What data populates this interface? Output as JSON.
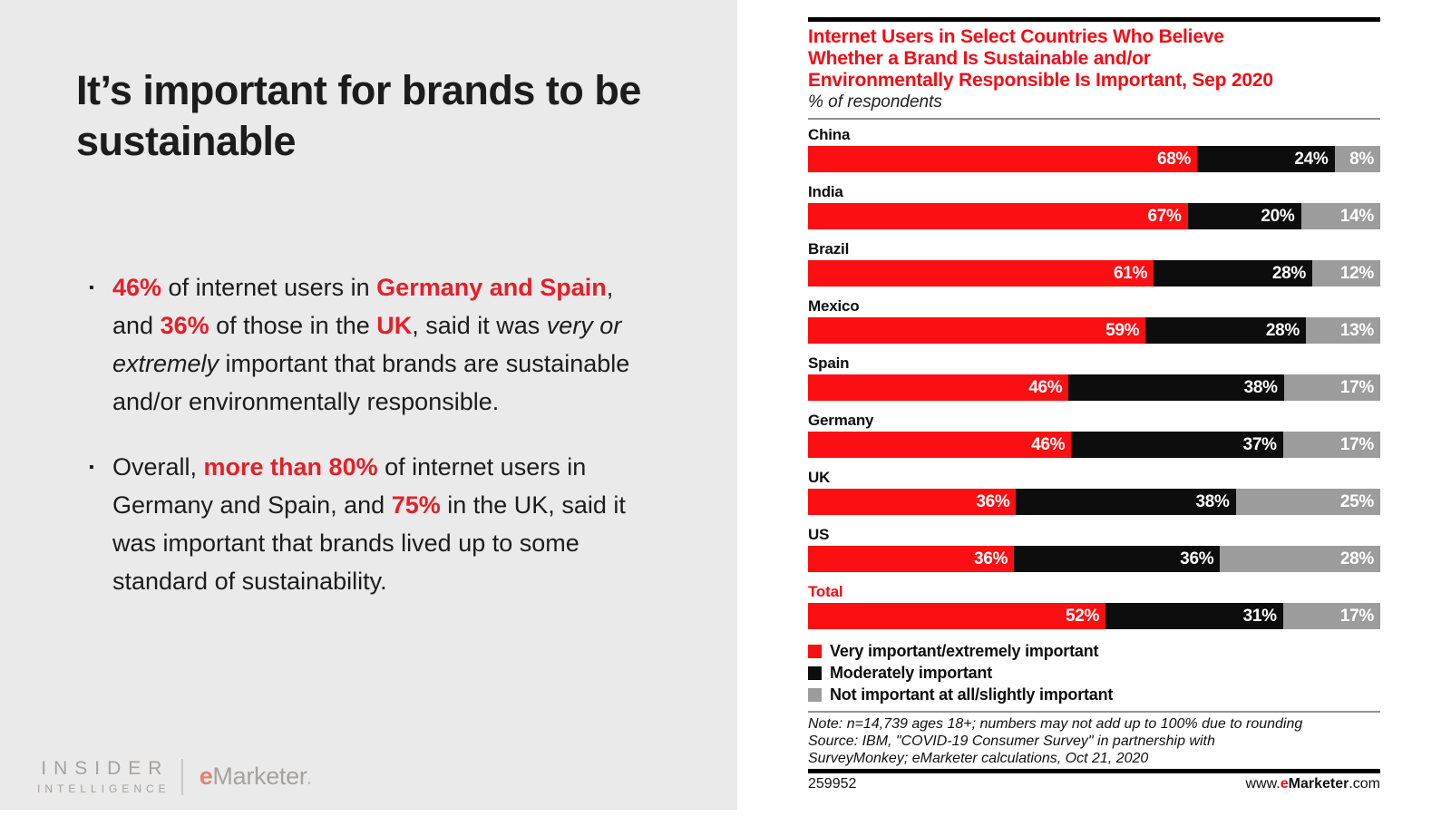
{
  "slide": {
    "title": "It’s important for brands to be sustainable",
    "bullets": [
      {
        "segments": [
          {
            "t": "46%",
            "s": "rb"
          },
          {
            "t": " of internet users in ",
            "s": "n"
          },
          {
            "t": "Germany and Spain",
            "s": "rb"
          },
          {
            "t": ", and ",
            "s": "n"
          },
          {
            "t": "36%",
            "s": "rb"
          },
          {
            "t": " of those in the ",
            "s": "n"
          },
          {
            "t": "UK",
            "s": "rb"
          },
          {
            "t": ", said it was ",
            "s": "n"
          },
          {
            "t": "very or extremely",
            "s": "i"
          },
          {
            "t": " important that brands are sustainable and/or environmentally responsible.",
            "s": "n"
          }
        ]
      },
      {
        "segments": [
          {
            "t": "Overall, ",
            "s": "n"
          },
          {
            "t": "more than 80%",
            "s": "rb"
          },
          {
            "t": " of internet users in Germany and Spain, and ",
            "s": "n"
          },
          {
            "t": "75%",
            "s": "rb"
          },
          {
            "t": " in the UK, said it was important that brands lived up to some standard of sustainability.",
            "s": "n"
          }
        ]
      }
    ],
    "bullet_marker": "▪",
    "logo": {
      "line1": "INSIDER",
      "line2": "INTELLIGENCE",
      "emarketer_e": "e",
      "emarketer_rest": "Marketer",
      "emarketer_dot": "."
    },
    "colors": {
      "text_red": "#e4202a",
      "panel_gray": "#e9eae9"
    }
  },
  "chart_data": {
    "type": "bar",
    "orientation": "horizontal",
    "stacked": true,
    "title": "Internet Users in Select Countries Who Believe Whether a Brand Is Sustainable and/or Environmentally Responsible Is Important, Sep 2020",
    "title_lines": [
      "Internet Users in Select Countries Who Believe",
      "Whether a Brand Is Sustainable and/or",
      "Environmentally Responsible Is Important, Sep 2020"
    ],
    "subtitle": "% of respondents",
    "categories": [
      "China",
      "India",
      "Brazil",
      "Mexico",
      "Spain",
      "Germany",
      "UK",
      "US",
      "Total"
    ],
    "red_label_categories": [
      "Total"
    ],
    "series": [
      {
        "key": "very-important",
        "name": "Very important/extremely important",
        "color": "#fb0f12",
        "values": [
          68,
          67,
          61,
          59,
          46,
          46,
          36,
          36,
          52
        ]
      },
      {
        "key": "moderately-important",
        "name": "Moderately important",
        "color": "#0d0d0d",
        "values": [
          24,
          20,
          28,
          28,
          38,
          37,
          38,
          36,
          31
        ]
      },
      {
        "key": "not-important",
        "name": "Not important at all/slightly important",
        "color": "#9c9c9c",
        "values": [
          8,
          14,
          12,
          13,
          17,
          17,
          25,
          28,
          17
        ]
      }
    ],
    "value_suffix": "%",
    "xlim": [
      0,
      100
    ],
    "legend_position": "bottom",
    "grid": false,
    "note": "Note: n=14,739 ages 18+; numbers may not add up to 100% due to rounding",
    "source": "Source: IBM, \"COVID-19 Consumer Survey\" in partnership with SurveyMonkey; eMarketer calculations, Oct 21, 2020",
    "footer": {
      "id": "259952",
      "url_prefix": "www.",
      "url_e": "e",
      "url_mid": "Marketer",
      "url_suffix": ".com"
    },
    "title_color": "#f20d17"
  }
}
